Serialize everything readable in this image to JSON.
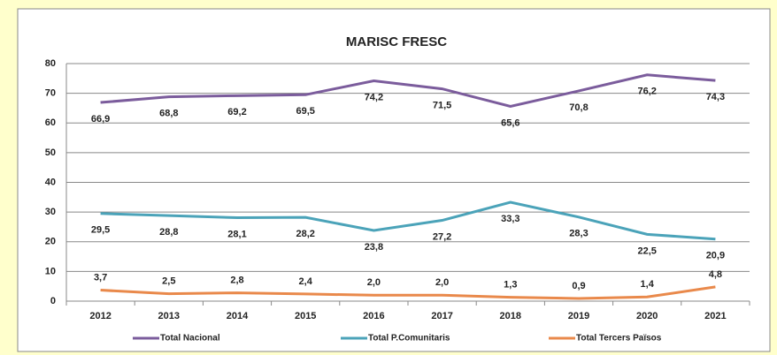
{
  "chart_data": {
    "type": "line",
    "title": "MARISC FRESC",
    "categories": [
      "2012",
      "2013",
      "2014",
      "2015",
      "2016",
      "2017",
      "2018",
      "2019",
      "2020",
      "2021"
    ],
    "series": [
      {
        "name": "Total Nacional",
        "color": "#7b5c9c",
        "values": [
          66.9,
          68.8,
          69.2,
          69.5,
          74.2,
          71.5,
          65.6,
          70.8,
          76.2,
          74.3
        ],
        "value_labels": [
          "66,9",
          "68,8",
          "69,2",
          "69,5",
          "74,2",
          "71,5",
          "65,6",
          "70,8",
          "76,2",
          "74,3"
        ]
      },
      {
        "name": "Total P.Comunitaris",
        "color": "#4ba3b9",
        "values": [
          29.5,
          28.8,
          28.1,
          28.2,
          23.8,
          27.2,
          33.3,
          28.3,
          22.5,
          20.9
        ],
        "value_labels": [
          "29,5",
          "28,8",
          "28,1",
          "28,2",
          "23,8",
          "27,2",
          "33,3",
          "28,3",
          "22,5",
          "20,9"
        ]
      },
      {
        "name": "Total Tercers Països",
        "color": "#e9894b",
        "values": [
          3.7,
          2.5,
          2.8,
          2.4,
          2.0,
          2.0,
          1.3,
          0.9,
          1.4,
          4.8
        ],
        "value_labels": [
          "3,7",
          "2,5",
          "2,8",
          "2,4",
          "2,0",
          "2,0",
          "1,3",
          "0,9",
          "1,4",
          "4,8"
        ]
      }
    ],
    "ylim": [
      0,
      80
    ],
    "yticks": [
      0,
      10,
      20,
      30,
      40,
      50,
      60,
      70,
      80
    ],
    "grid": true,
    "legend": "bottom"
  }
}
